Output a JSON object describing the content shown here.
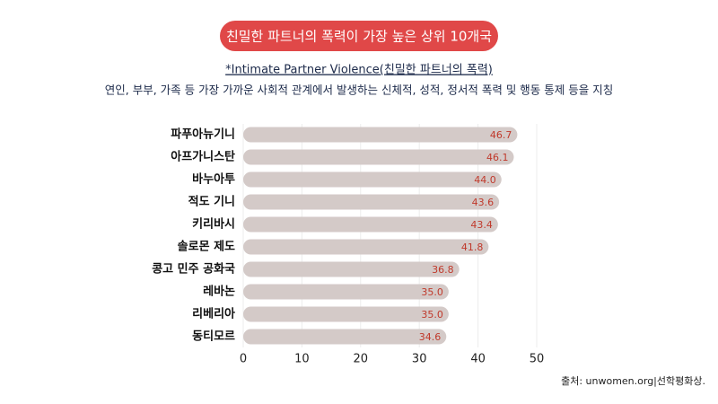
{
  "chart_data": {
    "type": "bar",
    "orientation": "horizontal",
    "title": "친밀한 파트너의 폭력이 가장 높은 상위 10개국",
    "subtitle": "*Intimate Partner Violence(친밀한 파트너의 폭력)",
    "description": "연인, 부부, 가족 등 가장 가까운 사회적 관계에서 발생하는 신체적, 성적, 정서적 폭력 및 행동 통제 등을 지칭",
    "categories": [
      "파푸아뉴기니",
      "아프가니스탄",
      "바누아투",
      "적도 기니",
      "키리바시",
      "솔로몬 제도",
      "콩고 민주 공화국",
      "레바논",
      "리베리아",
      "동티모르"
    ],
    "values": [
      46.7,
      46.1,
      44.0,
      43.6,
      43.4,
      41.8,
      36.8,
      35.0,
      35.0,
      34.6
    ],
    "value_labels": [
      "46.7",
      "46.1",
      "44.0",
      "43.6",
      "43.4",
      "41.8",
      "36.8",
      "35.0",
      "35.0",
      "34.6"
    ],
    "color": "#d4cac8",
    "label_color": "#c0392b",
    "title_color": "#e04848",
    "xlim": [
      0,
      50
    ],
    "xticks": [
      0,
      10,
      20,
      30,
      40,
      50
    ],
    "grid": true,
    "source": "출처: unwomen.org|선학평화상."
  }
}
